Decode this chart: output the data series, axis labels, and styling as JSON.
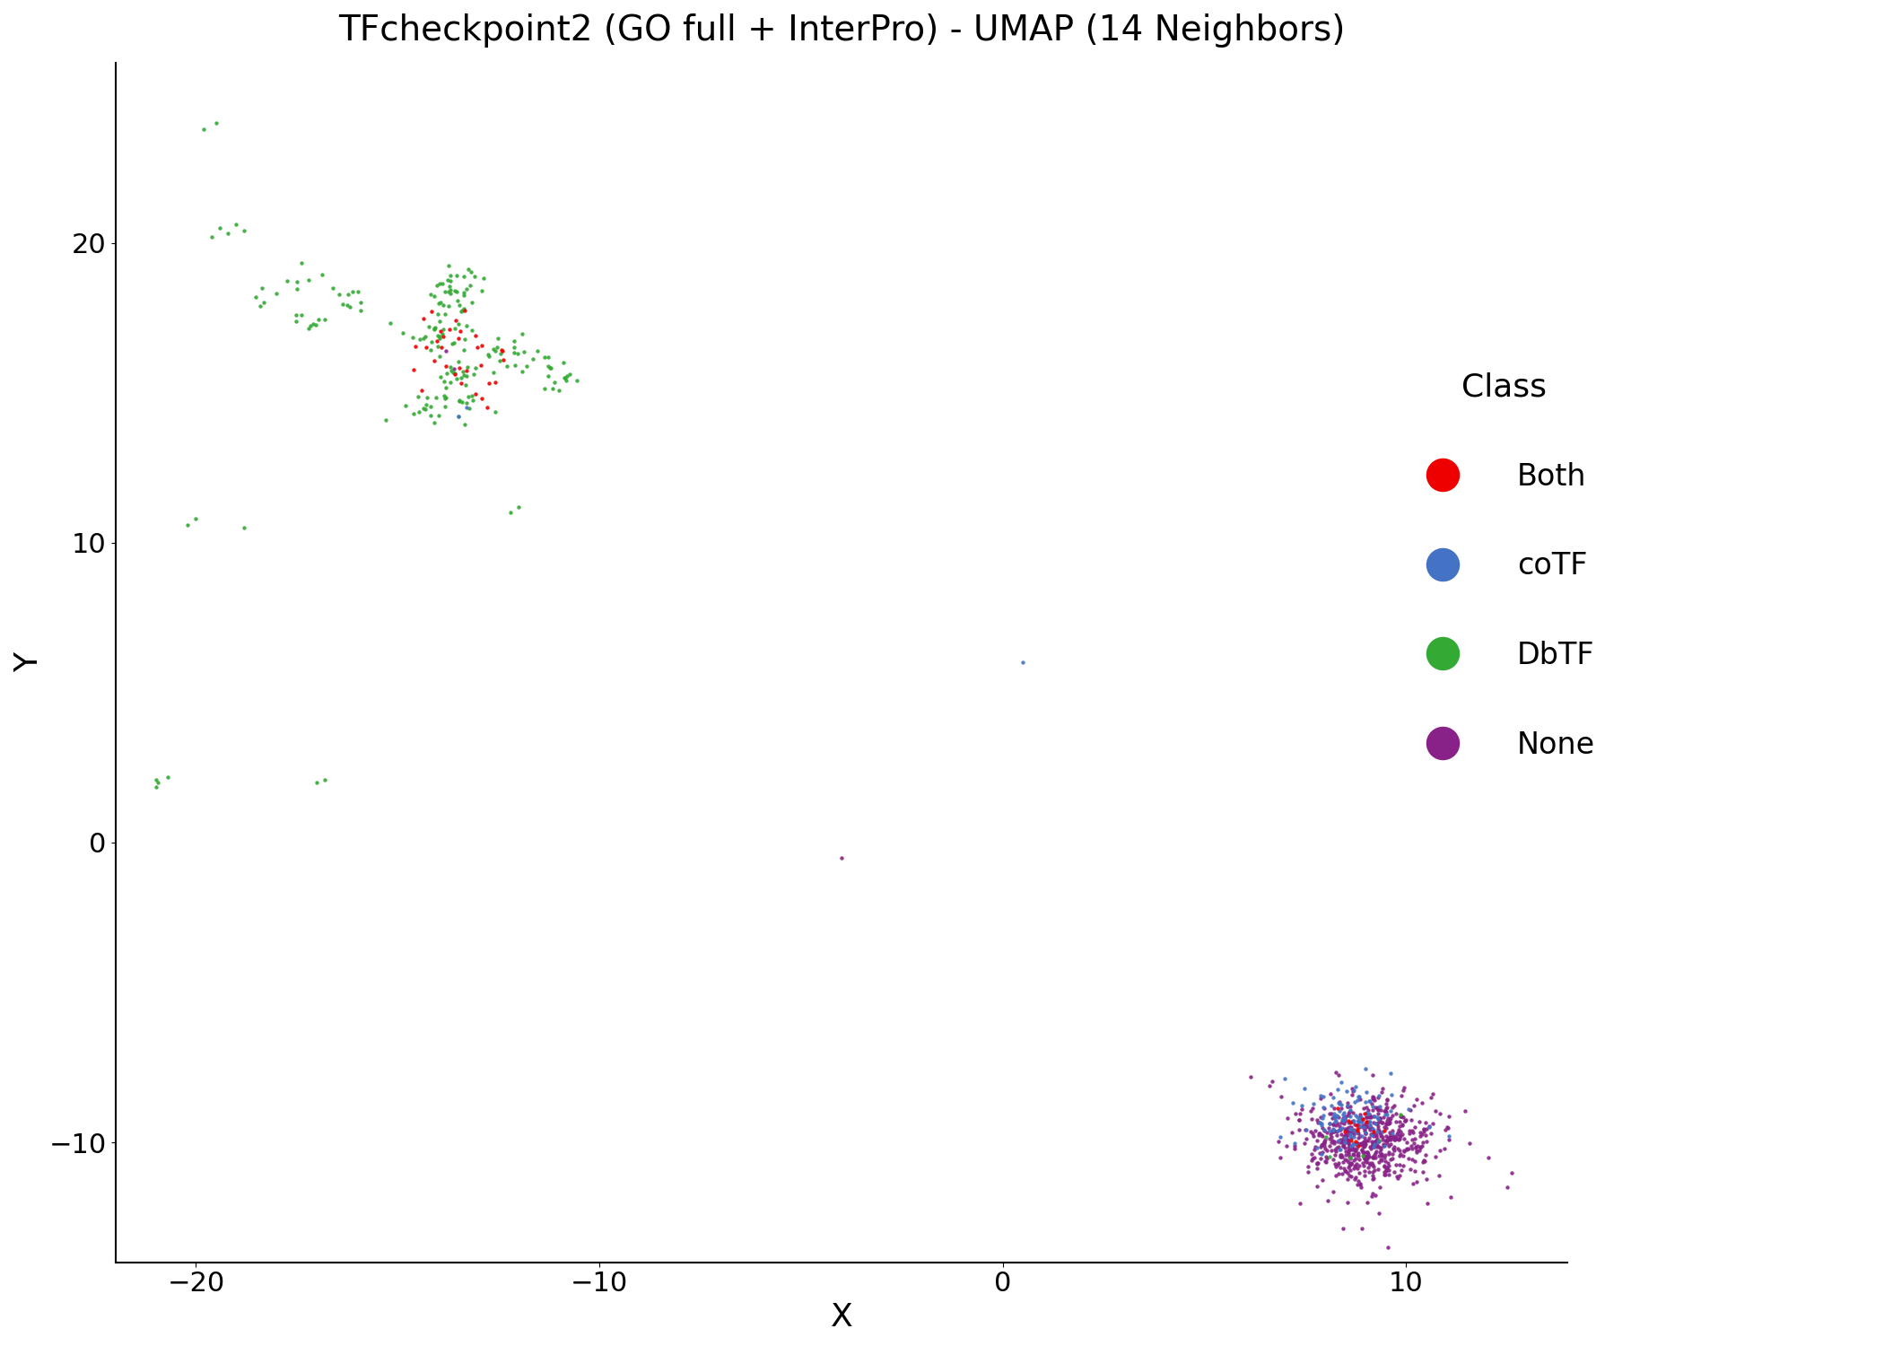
{
  "title": "TFcheckpoint2 (GO full + InterPro) - UMAP (14 Neighbors)",
  "xlabel": "X",
  "ylabel": "Y",
  "xlim": [
    -22,
    14
  ],
  "ylim": [
    -14,
    26
  ],
  "xticks": [
    -20,
    -10,
    0,
    10
  ],
  "yticks": [
    -10,
    0,
    10,
    20
  ],
  "classes": [
    "Both",
    "coTF",
    "DbTF",
    "None"
  ],
  "colors": {
    "Both": "#EE0000",
    "coTF": "#4472C4",
    "DbTF": "#33AA33",
    "None": "#882288"
  },
  "background_color": "#FFFFFF",
  "title_fontsize": 28,
  "axis_label_fontsize": 26,
  "tick_fontsize": 22,
  "legend_fontsize": 24,
  "legend_title_fontsize": 26,
  "point_size": 10,
  "random_seed": 42
}
